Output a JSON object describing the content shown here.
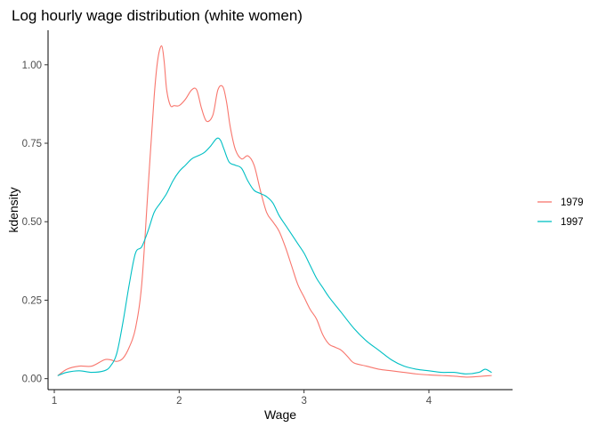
{
  "chart_data": {
    "type": "line",
    "title": "Log hourly wage distribution (white women)",
    "xlabel": "Wage",
    "ylabel": "kdensity",
    "xlim": [
      0.95,
      4.67
    ],
    "ylim": [
      -0.035,
      1.11
    ],
    "x_ticks": [
      1,
      2,
      3,
      4
    ],
    "x_tick_labels": [
      "1",
      "2",
      "3",
      "4"
    ],
    "y_ticks": [
      0,
      0.25,
      0.5,
      0.75,
      1.0
    ],
    "y_tick_labels": [
      "0.00",
      "0.25",
      "0.50",
      "0.75",
      "1.00"
    ],
    "grid": false,
    "legend_position": "right",
    "series": [
      {
        "name": "1979",
        "color": "#F8766D",
        "x": [
          1.03,
          1.1,
          1.2,
          1.3,
          1.4,
          1.45,
          1.5,
          1.55,
          1.6,
          1.65,
          1.7,
          1.75,
          1.8,
          1.83,
          1.86,
          1.88,
          1.9,
          1.93,
          1.96,
          2.0,
          2.05,
          2.1,
          2.14,
          2.18,
          2.22,
          2.27,
          2.31,
          2.35,
          2.38,
          2.41,
          2.45,
          2.5,
          2.55,
          2.6,
          2.65,
          2.7,
          2.75,
          2.8,
          2.85,
          2.9,
          2.95,
          3.0,
          3.05,
          3.1,
          3.15,
          3.2,
          3.25,
          3.3,
          3.35,
          3.4,
          3.5,
          3.6,
          3.7,
          3.8,
          3.9,
          4.0,
          4.1,
          4.2,
          4.3,
          4.4,
          4.5
        ],
        "y": [
          0.01,
          0.03,
          0.04,
          0.04,
          0.06,
          0.06,
          0.055,
          0.065,
          0.1,
          0.16,
          0.3,
          0.6,
          0.9,
          1.02,
          1.06,
          1.01,
          0.92,
          0.87,
          0.87,
          0.87,
          0.89,
          0.92,
          0.92,
          0.86,
          0.82,
          0.84,
          0.92,
          0.93,
          0.88,
          0.8,
          0.73,
          0.7,
          0.71,
          0.68,
          0.6,
          0.53,
          0.5,
          0.47,
          0.42,
          0.36,
          0.3,
          0.26,
          0.22,
          0.19,
          0.14,
          0.11,
          0.1,
          0.09,
          0.07,
          0.05,
          0.04,
          0.03,
          0.025,
          0.02,
          0.015,
          0.012,
          0.01,
          0.008,
          0.005,
          0.007,
          0.01
        ]
      },
      {
        "name": "1997",
        "color": "#00BFC4",
        "x": [
          1.03,
          1.1,
          1.2,
          1.3,
          1.4,
          1.45,
          1.5,
          1.55,
          1.6,
          1.65,
          1.7,
          1.75,
          1.8,
          1.85,
          1.9,
          1.95,
          2.0,
          2.05,
          2.1,
          2.15,
          2.2,
          2.25,
          2.3,
          2.33,
          2.36,
          2.4,
          2.45,
          2.5,
          2.55,
          2.6,
          2.65,
          2.7,
          2.75,
          2.8,
          2.85,
          2.9,
          2.95,
          3.0,
          3.05,
          3.1,
          3.15,
          3.2,
          3.3,
          3.4,
          3.5,
          3.6,
          3.7,
          3.8,
          3.9,
          4.0,
          4.1,
          4.2,
          4.3,
          4.4,
          4.45,
          4.5
        ],
        "y": [
          0.01,
          0.02,
          0.025,
          0.02,
          0.025,
          0.04,
          0.08,
          0.18,
          0.3,
          0.4,
          0.42,
          0.47,
          0.53,
          0.56,
          0.59,
          0.63,
          0.66,
          0.68,
          0.7,
          0.71,
          0.72,
          0.74,
          0.765,
          0.76,
          0.73,
          0.69,
          0.68,
          0.67,
          0.63,
          0.6,
          0.59,
          0.58,
          0.56,
          0.52,
          0.49,
          0.46,
          0.43,
          0.4,
          0.36,
          0.32,
          0.29,
          0.26,
          0.21,
          0.16,
          0.12,
          0.09,
          0.06,
          0.04,
          0.03,
          0.025,
          0.02,
          0.02,
          0.015,
          0.02,
          0.03,
          0.02
        ]
      }
    ]
  }
}
